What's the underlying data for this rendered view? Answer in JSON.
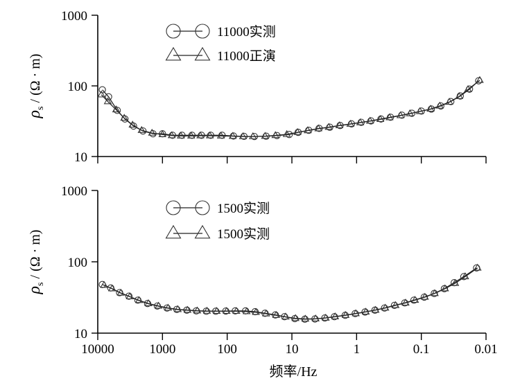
{
  "chart_data": [
    {
      "type": "line",
      "xscale": "log-reversed",
      "yscale": "log",
      "xlim": [
        10000,
        0.01
      ],
      "ylim": [
        10,
        1000
      ],
      "x_ticks": [
        "10000",
        "1000",
        "100",
        "10",
        "1",
        "0.1",
        "0.01"
      ],
      "y_ticks": [
        "1000",
        "100",
        "10"
      ],
      "ylabel_symbol": "ρ",
      "ylabel_sub": "s",
      "ylabel_unit": " / (Ω · m)",
      "xlabel": "",
      "series": [
        {
          "name": "11000实测",
          "marker": "circle",
          "x": [
            8500,
            6800,
            5000,
            3800,
            2800,
            2000,
            1400,
            1000,
            700,
            500,
            350,
            250,
            180,
            120,
            80,
            55,
            38,
            25,
            17,
            11,
            8,
            5.5,
            3.8,
            2.6,
            1.8,
            1.2,
            0.85,
            0.6,
            0.42,
            0.3,
            0.2,
            0.14,
            0.1,
            0.07,
            0.05,
            0.035,
            0.025,
            0.018,
            0.013
          ],
          "y": [
            88,
            70,
            45,
            34,
            27,
            23,
            21,
            21,
            20,
            20,
            20,
            20,
            20,
            20,
            19.5,
            19.3,
            19.2,
            19.4,
            19.8,
            20.5,
            22,
            23.5,
            25,
            26,
            27.5,
            29,
            30.5,
            32,
            34,
            36,
            38.5,
            41,
            44,
            47,
            52,
            60,
            72,
            90,
            118
          ]
        },
        {
          "name": "11000正演",
          "marker": "triangle",
          "x": [
            8800,
            7000,
            5200,
            3900,
            2900,
            2100,
            1450,
            1000,
            720,
            520,
            360,
            260,
            185,
            125,
            82,
            57,
            40,
            26,
            18,
            12,
            8.2,
            5.7,
            3.9,
            2.7,
            1.85,
            1.25,
            0.88,
            0.62,
            0.43,
            0.31,
            0.21,
            0.15,
            0.105,
            0.072,
            0.052,
            0.037,
            0.026,
            0.019,
            0.0125
          ],
          "y": [
            75,
            60,
            46,
            35,
            28,
            23.5,
            21.5,
            20.5,
            19.8,
            19.6,
            19.6,
            19.7,
            19.7,
            19.6,
            19.4,
            19.2,
            19.2,
            19.4,
            19.9,
            20.6,
            22,
            23.3,
            24.8,
            26,
            27.4,
            28.8,
            30.2,
            31.8,
            33.6,
            35.6,
            38,
            40.5,
            43.5,
            47,
            52,
            59,
            71,
            89,
            120
          ]
        }
      ]
    },
    {
      "type": "line",
      "xscale": "log-reversed",
      "yscale": "log",
      "xlim": [
        10000,
        0.01
      ],
      "ylim": [
        10,
        1000
      ],
      "x_ticks": [
        "10000",
        "1000",
        "100",
        "10",
        "1",
        "0.1",
        "0.01"
      ],
      "y_ticks": [
        "1000",
        "100",
        "10"
      ],
      "ylabel_symbol": "ρ",
      "ylabel_sub": "s",
      "ylabel_unit": " / (Ω · m)",
      "xlabel": "频率/Hz",
      "series": [
        {
          "name": "1500实测",
          "marker": "circle",
          "x": [
            8500,
            6300,
            4600,
            3300,
            2400,
            1700,
            1200,
            850,
            600,
            420,
            300,
            210,
            150,
            105,
            75,
            52,
            37,
            26,
            18,
            13,
            9,
            6.3,
            4.4,
            3.1,
            2.2,
            1.5,
            1.05,
            0.74,
            0.52,
            0.37,
            0.26,
            0.18,
            0.13,
            0.09,
            0.063,
            0.044,
            0.031,
            0.022,
            0.014
          ],
          "y": [
            48,
            43,
            37,
            33,
            29,
            26,
            24,
            22.5,
            21.5,
            21,
            20.5,
            20.3,
            20.3,
            20.4,
            20.5,
            20.5,
            20,
            19,
            18,
            17,
            16,
            15.7,
            15.8,
            16.3,
            17,
            17.8,
            18.8,
            19.8,
            21,
            22.5,
            24.5,
            26.5,
            29,
            32,
            36,
            42,
            51,
            62,
            82
          ]
        },
        {
          "name": "1500实测",
          "marker": "triangle",
          "x": [
            8000,
            6000,
            4400,
            3200,
            2300,
            1650,
            1150,
            820,
            580,
            410,
            290,
            205,
            145,
            102,
            72,
            50,
            36,
            25,
            17.5,
            12.5,
            8.8,
            6.2,
            4.3,
            3,
            2.15,
            1.48,
            1.03,
            0.72,
            0.51,
            0.36,
            0.25,
            0.175,
            0.125,
            0.088,
            0.062,
            0.043,
            0.03,
            0.021,
            0.0135
          ],
          "y": [
            47,
            42,
            36.5,
            32.5,
            28.8,
            26,
            24,
            22.5,
            21.5,
            21,
            20.6,
            20.4,
            20.3,
            20.3,
            20.3,
            20.1,
            19.6,
            18.7,
            17.8,
            16.9,
            16.1,
            15.8,
            15.9,
            16.3,
            17,
            17.8,
            18.8,
            19.8,
            21,
            22.5,
            24.5,
            26.5,
            29,
            32,
            36,
            42,
            50,
            62,
            82
          ]
        }
      ]
    }
  ]
}
